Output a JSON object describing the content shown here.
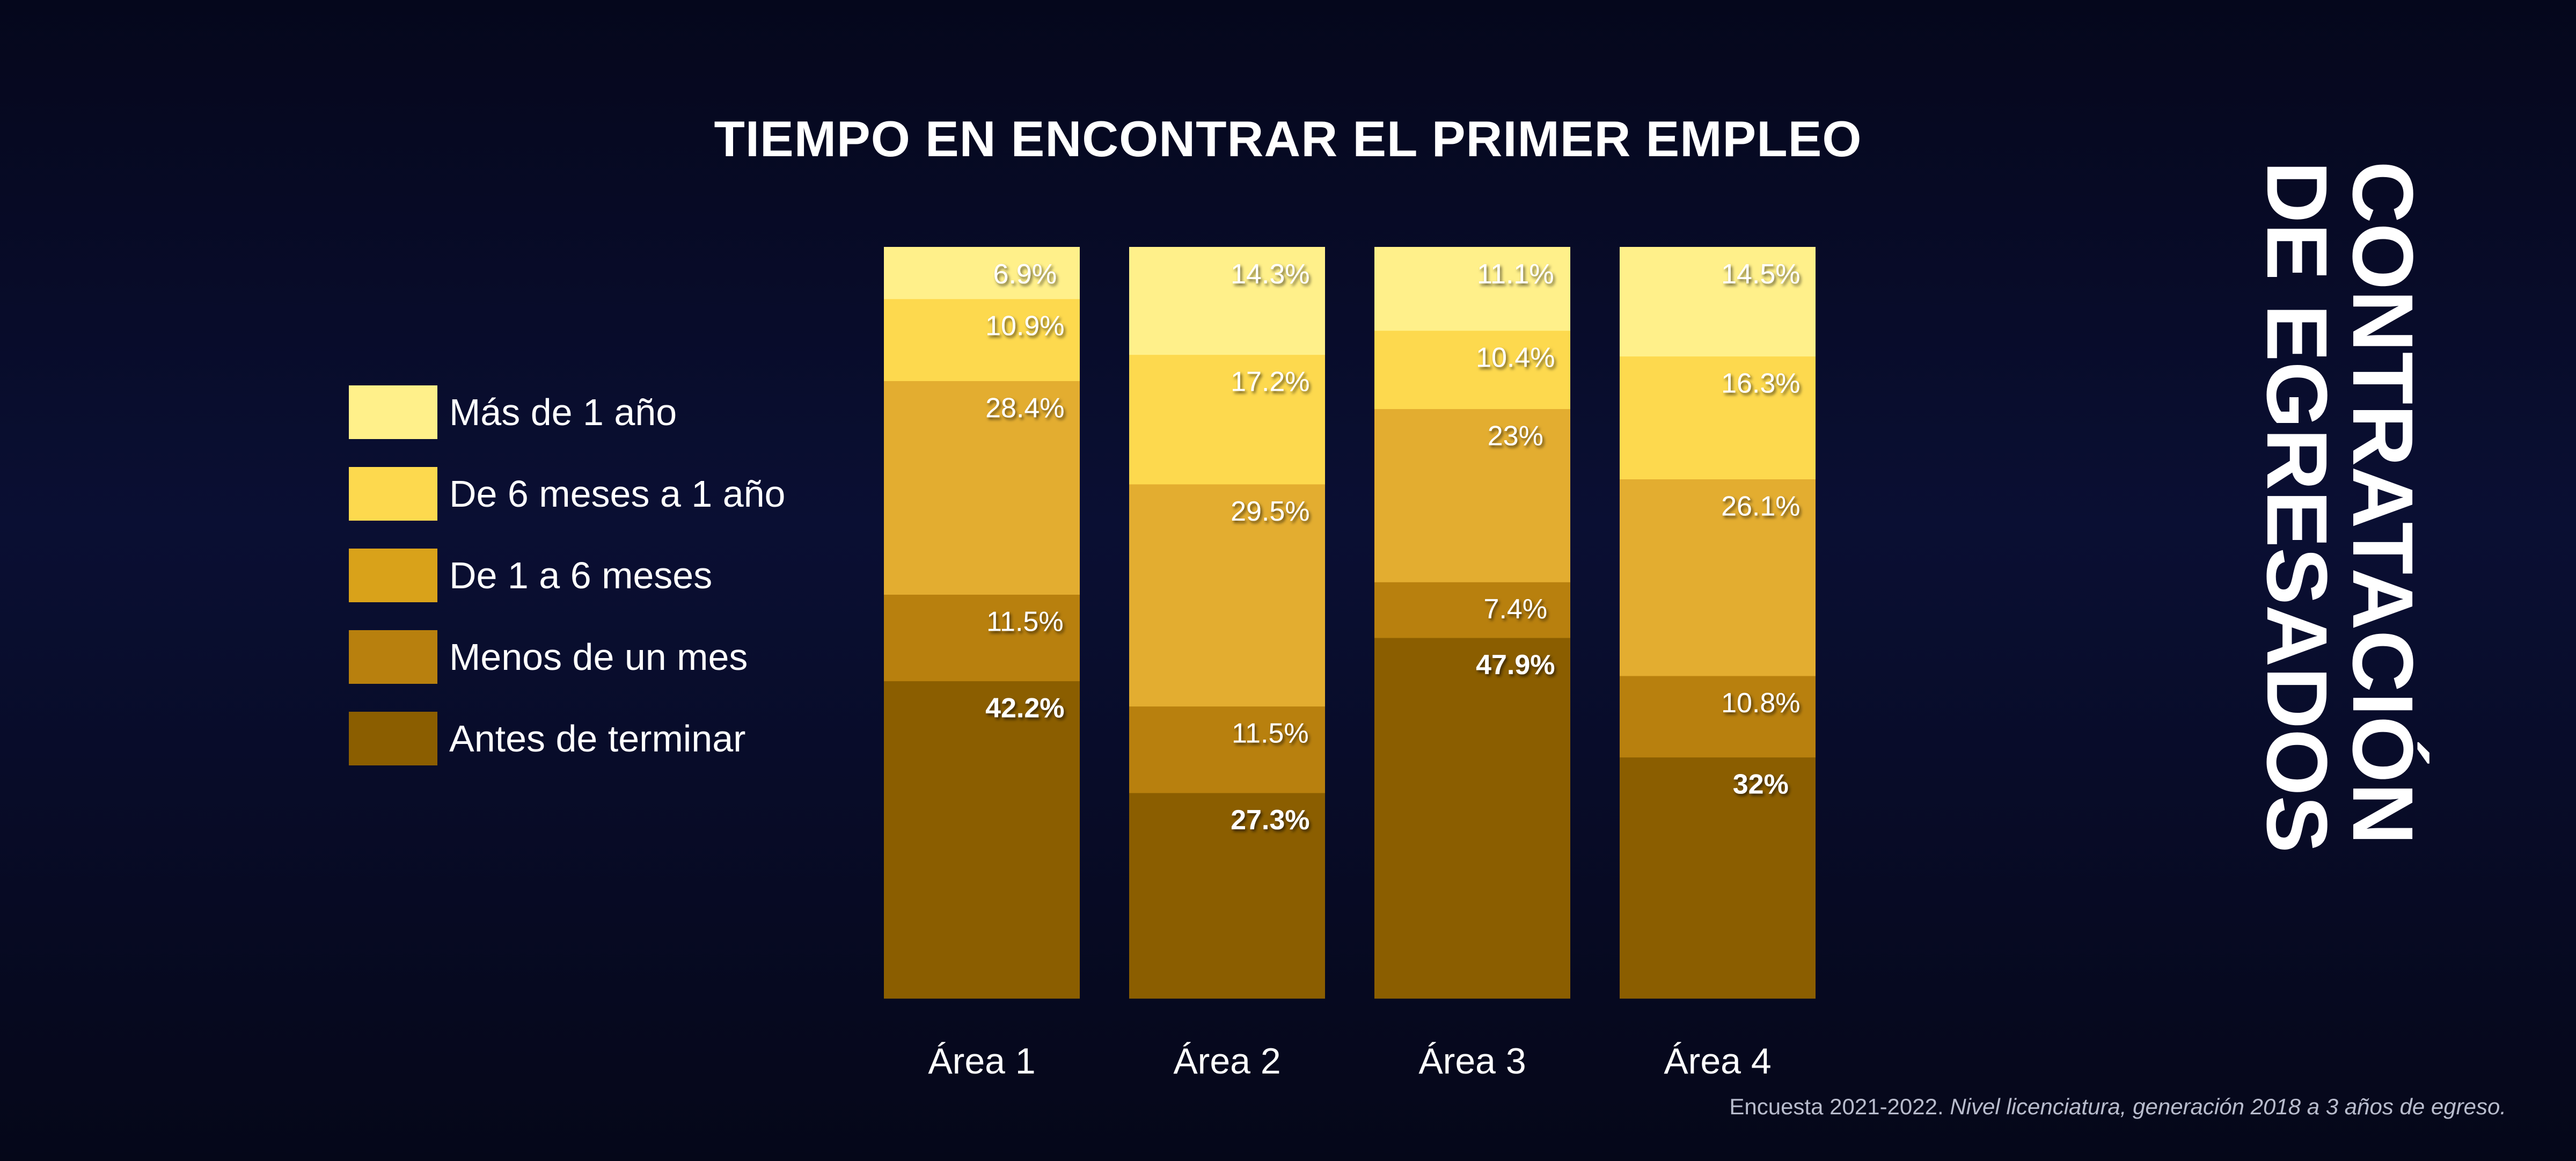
{
  "chart_data": {
    "type": "bar",
    "stacked": true,
    "title": "TIEMPO EN ENCONTRAR EL PRIMER EMPLEO",
    "categories": [
      "Área 1",
      "Área 2",
      "Área 3",
      "Área 4"
    ],
    "series": [
      {
        "name": "Antes de terminar",
        "color": "#8b5e00",
        "values": [
          42.2,
          27.3,
          47.9,
          32
        ],
        "labels": [
          "42.2%",
          "27.3%",
          "47.9%",
          "32%"
        ]
      },
      {
        "name": "Menos de un mes",
        "color": "#b8800e",
        "values": [
          11.5,
          11.5,
          7.4,
          10.8
        ],
        "labels": [
          "11.5%",
          "11.5%",
          "7.4%",
          "10.8%"
        ]
      },
      {
        "name": "De 1 a 6 meses",
        "color": "#e3ad30",
        "values": [
          28.4,
          29.5,
          23,
          26.1
        ],
        "labels": [
          "28.4%",
          "29.5%",
          "23%",
          "26.1%"
        ]
      },
      {
        "name": "De 6 meses a 1 año",
        "color": "#fdd94e",
        "values": [
          10.9,
          17.2,
          10.4,
          16.3
        ],
        "labels": [
          "10.9%",
          "17.2%",
          "10.4%",
          "16.3%"
        ]
      },
      {
        "name": "Más de 1 año",
        "color": "#fff08a",
        "values": [
          6.9,
          14.3,
          11.1,
          14.5
        ],
        "labels": [
          "6.9%",
          "14.3%",
          "11.1%",
          "14.5%"
        ]
      }
    ],
    "ylim": [
      0,
      100
    ],
    "grid": false,
    "legend_position": "left"
  },
  "legend": {
    "items": [
      {
        "label": "Más de 1 año",
        "color": "#fff08a"
      },
      {
        "label": "De 6 meses a 1 año",
        "color": "#fdd94e"
      },
      {
        "label": "De 1 a 6 meses",
        "color": "#d9a21a"
      },
      {
        "label": "Menos de un mes",
        "color": "#b8800e"
      },
      {
        "label": "Antes de terminar",
        "color": "#8b5e00"
      }
    ]
  },
  "side_title": {
    "line1": "CONTRATACIÓN",
    "line2": "DE EGRESADOS"
  },
  "footnote": {
    "plain": "Encuesta 2021-2022. ",
    "italic": "Nivel licenciatura, generación 2018 a 3 años de egreso."
  }
}
